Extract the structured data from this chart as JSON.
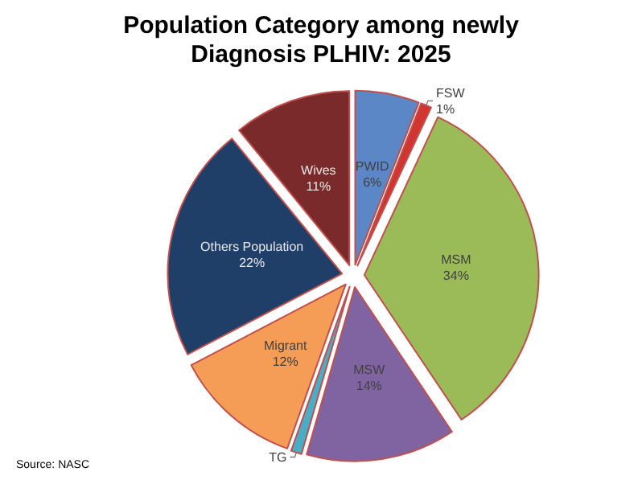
{
  "chart_data": {
    "type": "pie",
    "title": "Population Category among newly\nDiagnosis PLHIV: 2025",
    "categories": [
      "PWID",
      "FSW",
      "MSM",
      "MSW",
      "TG",
      "Migrant",
      "Others Population",
      "Wives"
    ],
    "values": [
      6,
      1,
      34,
      14,
      1,
      12,
      22,
      11
    ],
    "value_labels": [
      "6%",
      "1%",
      "34%",
      "14%",
      null,
      "12%",
      "22%",
      "11%"
    ],
    "colors": [
      "#5b87c7",
      "#d2352f",
      "#9bbb59",
      "#8064a2",
      "#4bacc6",
      "#f59d56",
      "#1f3f68",
      "#7a2a2a"
    ],
    "legend": false,
    "annotations": [
      "Source: NASC"
    ]
  }
}
